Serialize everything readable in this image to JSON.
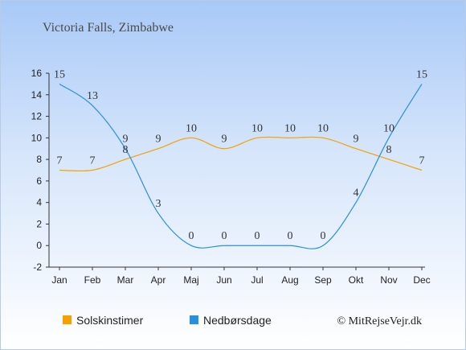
{
  "chart_data": {
    "type": "line",
    "title": "Victoria Falls, Zimbabwe",
    "categories": [
      "Jan",
      "Feb",
      "Mar",
      "Apr",
      "Maj",
      "Jun",
      "Jul",
      "Aug",
      "Sep",
      "Okt",
      "Nov",
      "Dec"
    ],
    "series": [
      {
        "name": "Solskinstimer",
        "color": "#f5a100",
        "values": [
          7,
          7,
          8,
          9,
          10,
          9,
          10,
          10,
          10,
          9,
          8,
          7
        ]
      },
      {
        "name": "Nedbørsdage",
        "color": "#2a8fe0",
        "values": [
          15,
          13,
          9,
          3,
          0,
          0,
          0,
          0,
          0,
          4,
          10,
          15
        ]
      }
    ],
    "ylim": [
      -2,
      16
    ],
    "yticks": [
      -2,
      0,
      2,
      4,
      6,
      8,
      10,
      12,
      14,
      16
    ],
    "grid": false,
    "legend_position": "bottom-left"
  },
  "credit": "© MitRejseVejr.dk"
}
